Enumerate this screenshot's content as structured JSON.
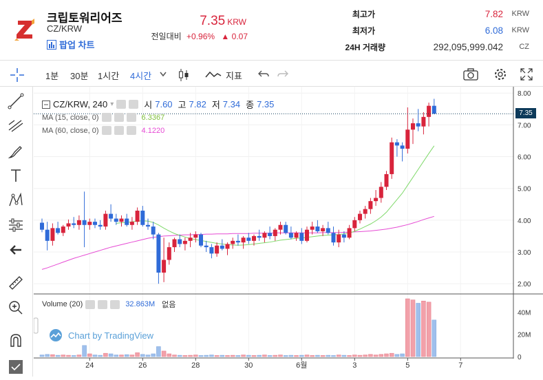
{
  "coin": {
    "name": "크립토워리어즈",
    "pair": "CZ/KRW",
    "popup_label": "팝업 차트"
  },
  "price": {
    "value": "7.35",
    "unit": "KRW",
    "change_label": "전일대비",
    "change_pct": "+0.96%",
    "change_arrow": "▲",
    "change_abs": "0.07"
  },
  "stats": [
    {
      "label": "최고가",
      "value": "7.82",
      "unit": "KRW",
      "color": "#d8243c"
    },
    {
      "label": "최저가",
      "value": "6.08",
      "unit": "KRW",
      "color": "#2f6bd8"
    },
    {
      "label": "24H 거래량",
      "value": "292,095,999.042",
      "unit": "CZ",
      "color": "#333333"
    }
  ],
  "toolbar": {
    "intervals": [
      "1분",
      "30분",
      "1시간",
      "4시간"
    ],
    "active_interval": "4시간",
    "indicator_label": "지표"
  },
  "legend": {
    "symbol": "CZ/KRW, 240",
    "o_label": "시",
    "o_value": "7.60",
    "h_label": "고",
    "h_value": "7.82",
    "l_label": "저",
    "l_value": "7.34",
    "c_label": "종",
    "c_value": "7.35",
    "ma15_label": "MA (15, close, 0)",
    "ma15_value": "6.3367",
    "ma60_label": "MA (60, close, 0)",
    "ma60_value": "4.1220",
    "volume_label": "Volume (20)",
    "volume_value": "32.863M",
    "volume_extra": "없음"
  },
  "watermark": "Chart by TradingView",
  "last_price_tag": "7.35",
  "colors": {
    "up": "#d8243c",
    "down": "#2f6bd8",
    "ma15": "#7fd96a",
    "ma60": "#e64ad4",
    "vol_up": "#f2a1aa",
    "vol_down": "#9fc0ec"
  },
  "chart_data": {
    "type": "candlestick",
    "x_tick_labels": [
      "24",
      "26",
      "28",
      "30",
      "6월",
      "3",
      "5",
      "7"
    ],
    "y_tick_labels": [
      "8.00",
      "7.00",
      "6.00",
      "5.00",
      "4.00",
      "3.00",
      "2.00"
    ],
    "ylim": [
      1.7,
      8.2
    ],
    "volume_tick_labels": [
      "40M",
      "20M",
      "0"
    ],
    "volume_ylim": [
      0,
      52
    ],
    "candles": [
      [
        3.92,
        4.05,
        3.62,
        3.7
      ],
      [
        3.7,
        3.95,
        3.05,
        3.35
      ],
      [
        3.35,
        3.9,
        3.2,
        3.75
      ],
      [
        3.75,
        3.95,
        3.55,
        3.6
      ],
      [
        3.6,
        3.85,
        3.5,
        3.8
      ],
      [
        3.8,
        4.02,
        3.7,
        3.9
      ],
      [
        3.9,
        4.1,
        3.75,
        3.85
      ],
      [
        3.85,
        4.15,
        3.7,
        4.0
      ],
      [
        4.0,
        4.9,
        3.15,
        3.85
      ],
      [
        3.85,
        4.05,
        3.7,
        3.95
      ],
      [
        3.95,
        4.05,
        3.75,
        3.85
      ],
      [
        3.85,
        4.0,
        3.7,
        3.8
      ],
      [
        3.8,
        4.3,
        3.7,
        4.2
      ],
      [
        4.2,
        4.5,
        3.95,
        4.05
      ],
      [
        4.05,
        4.2,
        3.85,
        3.95
      ],
      [
        3.95,
        4.15,
        3.8,
        4.05
      ],
      [
        4.05,
        4.2,
        3.8,
        3.85
      ],
      [
        3.85,
        4.1,
        3.7,
        3.95
      ],
      [
        3.95,
        4.4,
        3.85,
        4.3
      ],
      [
        4.3,
        4.45,
        3.8,
        3.85
      ],
      [
        3.85,
        4.05,
        3.7,
        3.8
      ],
      [
        3.8,
        3.95,
        3.4,
        3.55
      ],
      [
        3.55,
        3.6,
        2.0,
        2.35
      ],
      [
        2.35,
        3.45,
        2.05,
        2.75
      ],
      [
        2.75,
        3.3,
        2.6,
        3.15
      ],
      [
        3.15,
        3.45,
        3.0,
        3.4
      ],
      [
        3.4,
        3.55,
        3.15,
        3.25
      ],
      [
        3.25,
        3.45,
        3.05,
        3.35
      ],
      [
        3.35,
        3.6,
        3.15,
        3.45
      ],
      [
        3.45,
        3.65,
        3.3,
        3.55
      ],
      [
        3.55,
        3.6,
        3.15,
        3.2
      ],
      [
        3.2,
        3.35,
        3.0,
        3.15
      ],
      [
        3.15,
        3.25,
        2.8,
        2.95
      ],
      [
        2.95,
        3.3,
        2.85,
        3.2
      ],
      [
        3.2,
        3.4,
        3.05,
        3.1
      ],
      [
        3.1,
        3.3,
        2.9,
        3.25
      ],
      [
        3.25,
        3.45,
        3.1,
        3.35
      ],
      [
        3.35,
        3.55,
        3.2,
        3.3
      ],
      [
        3.3,
        3.5,
        3.1,
        3.45
      ],
      [
        3.45,
        3.6,
        3.25,
        3.35
      ],
      [
        3.35,
        3.55,
        3.2,
        3.5
      ],
      [
        3.5,
        3.7,
        3.35,
        3.45
      ],
      [
        3.45,
        3.65,
        3.3,
        3.6
      ],
      [
        3.6,
        3.8,
        3.4,
        3.5
      ],
      [
        3.5,
        3.75,
        3.35,
        3.7
      ],
      [
        3.7,
        3.95,
        3.55,
        3.85
      ],
      [
        3.85,
        3.95,
        3.55,
        3.6
      ],
      [
        3.6,
        3.8,
        3.4,
        3.45
      ],
      [
        3.45,
        3.65,
        3.35,
        3.6
      ],
      [
        3.6,
        3.75,
        3.25,
        3.35
      ],
      [
        3.35,
        3.8,
        3.3,
        3.7
      ],
      [
        3.7,
        3.95,
        3.55,
        3.8
      ],
      [
        3.8,
        4.0,
        3.6,
        3.65
      ],
      [
        3.65,
        3.85,
        3.5,
        3.75
      ],
      [
        3.75,
        3.95,
        3.55,
        3.6
      ],
      [
        3.6,
        3.8,
        3.2,
        3.3
      ],
      [
        3.3,
        3.7,
        3.15,
        3.55
      ],
      [
        3.55,
        3.65,
        3.3,
        3.45
      ],
      [
        3.45,
        3.85,
        3.4,
        3.75
      ],
      [
        3.75,
        4.1,
        3.65,
        4.0
      ],
      [
        4.0,
        4.3,
        3.9,
        4.2
      ],
      [
        4.2,
        4.45,
        4.05,
        4.35
      ],
      [
        4.35,
        4.7,
        4.2,
        4.6
      ],
      [
        4.6,
        4.95,
        4.45,
        4.7
      ],
      [
        4.7,
        5.2,
        4.55,
        5.05
      ],
      [
        5.05,
        5.55,
        4.95,
        5.45
      ],
      [
        5.45,
        6.6,
        5.3,
        6.45
      ],
      [
        6.45,
        6.55,
        6.0,
        6.35
      ],
      [
        6.35,
        6.45,
        5.85,
        6.25
      ],
      [
        6.25,
        7.55,
        6.1,
        6.85
      ],
      [
        6.85,
        7.2,
        6.4,
        7.05
      ],
      [
        7.05,
        7.5,
        6.8,
        6.95
      ],
      [
        6.95,
        7.4,
        6.7,
        7.25
      ],
      [
        7.25,
        7.7,
        6.95,
        7.6
      ],
      [
        7.6,
        7.82,
        7.34,
        7.35
      ]
    ],
    "ma15": [
      null,
      null,
      null,
      null,
      null,
      null,
      null,
      null,
      null,
      null,
      null,
      null,
      null,
      null,
      3.9,
      3.92,
      3.93,
      3.95,
      3.97,
      3.98,
      3.97,
      3.93,
      3.85,
      3.75,
      3.66,
      3.58,
      3.52,
      3.47,
      3.42,
      3.39,
      3.36,
      3.33,
      3.3,
      3.27,
      3.25,
      3.23,
      3.22,
      3.21,
      3.22,
      3.23,
      3.25,
      3.27,
      3.29,
      3.31,
      3.34,
      3.37,
      3.39,
      3.41,
      3.43,
      3.44,
      3.46,
      3.48,
      3.5,
      3.52,
      3.53,
      3.54,
      3.55,
      3.57,
      3.6,
      3.65,
      3.72,
      3.8,
      3.88,
      3.98,
      4.1,
      4.25,
      4.45,
      4.65,
      4.85,
      5.1,
      5.35,
      5.6,
      5.85,
      6.1,
      6.34
    ],
    "ma60": [
      2.45,
      2.5,
      2.56,
      2.62,
      2.68,
      2.74,
      2.8,
      2.85,
      2.9,
      2.95,
      3.0,
      3.05,
      3.1,
      3.15,
      3.19,
      3.23,
      3.27,
      3.31,
      3.35,
      3.39,
      3.43,
      3.46,
      3.48,
      3.5,
      3.51,
      3.52,
      3.53,
      3.54,
      3.54,
      3.55,
      3.55,
      3.56,
      3.56,
      3.57,
      3.57,
      3.57,
      3.58,
      3.58,
      3.58,
      3.58,
      3.59,
      3.59,
      3.59,
      3.59,
      3.6,
      3.6,
      3.6,
      3.6,
      3.6,
      3.6,
      3.6,
      3.6,
      3.6,
      3.61,
      3.61,
      3.61,
      3.61,
      3.62,
      3.62,
      3.63,
      3.64,
      3.65,
      3.66,
      3.68,
      3.7,
      3.72,
      3.75,
      3.78,
      3.82,
      3.86,
      3.91,
      3.96,
      4.02,
      4.07,
      4.12
    ],
    "volume": [
      1.5,
      2.0,
      1.8,
      1.2,
      1.5,
      1.2,
      1.0,
      1.5,
      10.0,
      2.5,
      1.5,
      1.2,
      3.0,
      2.5,
      1.5,
      1.5,
      1.8,
      1.5,
      3.5,
      2.0,
      1.5,
      2.5,
      9.0,
      5.0,
      2.5,
      1.5,
      1.2,
      1.0,
      1.2,
      1.5,
      1.0,
      1.2,
      1.5,
      1.0,
      1.2,
      1.0,
      1.2,
      1.0,
      1.5,
      1.2,
      1.0,
      1.2,
      1.5,
      1.0,
      1.2,
      1.5,
      1.0,
      1.2,
      1.0,
      1.2,
      1.5,
      1.0,
      1.2,
      1.0,
      1.2,
      1.0,
      1.5,
      1.2,
      1.0,
      1.5,
      1.2,
      1.5,
      2.0,
      1.5,
      2.0,
      2.5,
      3.0,
      2.0,
      2.5,
      52.0,
      51.0,
      48.0,
      50.0,
      49.0,
      32.9
    ]
  }
}
